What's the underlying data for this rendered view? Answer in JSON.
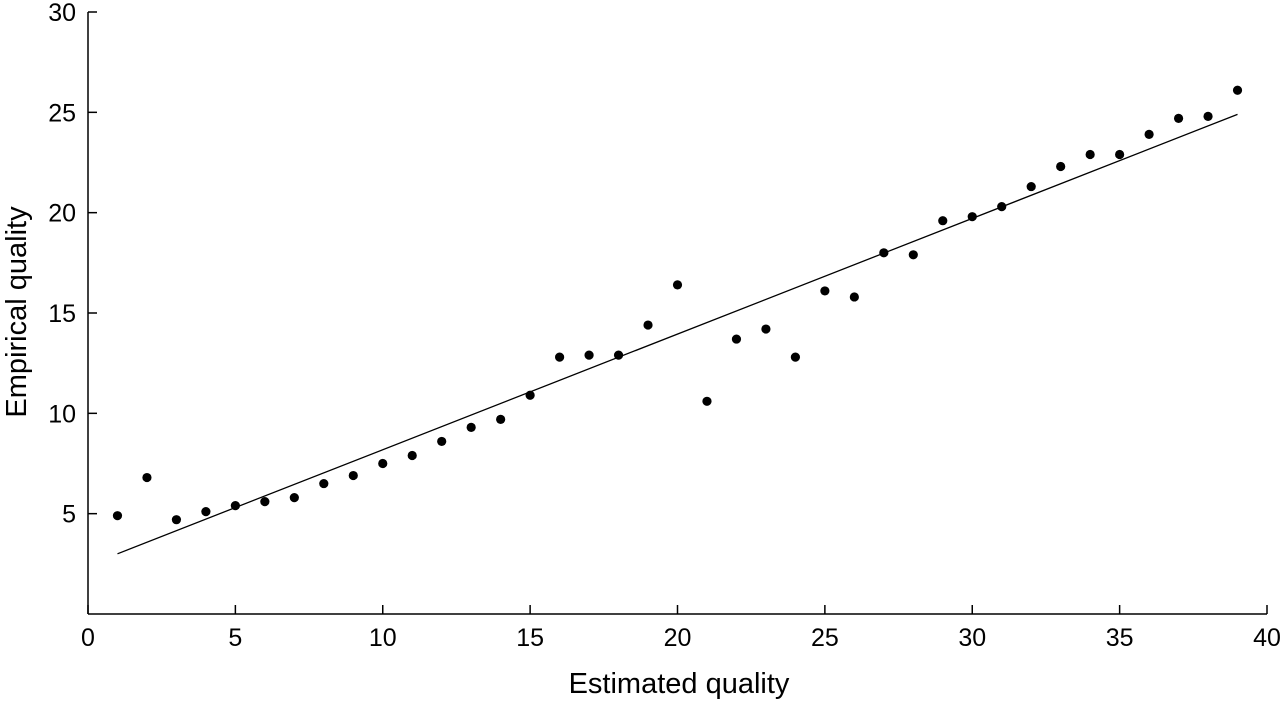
{
  "chart_data": {
    "type": "scatter",
    "title": "",
    "xlabel": "Estimated quality",
    "ylabel": "Empirical quality",
    "xlim": [
      0,
      40
    ],
    "ylim": [
      0,
      30
    ],
    "x_ticks": [
      0,
      5,
      10,
      15,
      20,
      25,
      30,
      35,
      40
    ],
    "y_ticks": [
      5,
      10,
      15,
      20,
      25,
      30
    ],
    "grid": false,
    "legend": "none",
    "series": [
      {
        "type": "scatter",
        "color": "#000000",
        "points": [
          [
            1,
            4.9
          ],
          [
            2,
            6.8
          ],
          [
            3,
            4.7
          ],
          [
            4,
            5.1
          ],
          [
            5,
            5.4
          ],
          [
            6,
            5.6
          ],
          [
            7,
            5.8
          ],
          [
            8,
            6.5
          ],
          [
            9,
            6.9
          ],
          [
            10,
            7.5
          ],
          [
            11,
            7.9
          ],
          [
            12,
            8.6
          ],
          [
            13,
            9.3
          ],
          [
            14,
            9.7
          ],
          [
            15,
            10.9
          ],
          [
            16,
            12.8
          ],
          [
            17,
            12.9
          ],
          [
            18,
            12.9
          ],
          [
            19,
            14.4
          ],
          [
            20,
            16.4
          ],
          [
            21,
            10.6
          ],
          [
            22,
            13.7
          ],
          [
            23,
            14.2
          ],
          [
            24,
            12.8
          ],
          [
            25,
            16.1
          ],
          [
            26,
            15.8
          ],
          [
            27,
            18.0
          ],
          [
            28,
            17.9
          ],
          [
            29,
            19.6
          ],
          [
            30,
            19.8
          ],
          [
            31,
            20.3
          ],
          [
            32,
            21.3
          ],
          [
            33,
            22.3
          ],
          [
            34,
            22.9
          ],
          [
            35,
            22.9
          ],
          [
            36,
            23.9
          ],
          [
            37,
            24.7
          ],
          [
            38,
            24.8
          ],
          [
            39,
            26.1
          ]
        ]
      },
      {
        "type": "line",
        "color": "#000000",
        "points": [
          [
            1,
            3.0
          ],
          [
            39,
            24.9
          ]
        ]
      }
    ]
  }
}
